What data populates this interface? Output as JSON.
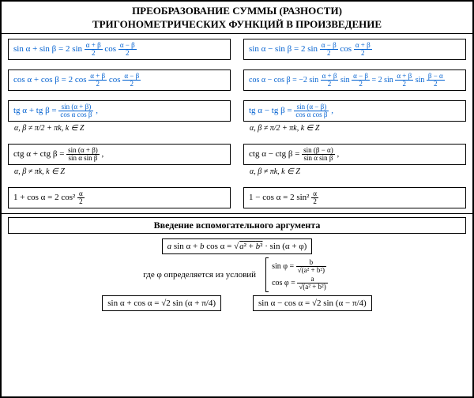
{
  "colors": {
    "accent": "#0060d0",
    "text": "#000000",
    "border": "#000000",
    "bg": "#ffffff"
  },
  "title_line1": "ПРЕОБРАЗОВАНИЕ СУММЫ (РАЗНОСТИ)",
  "title_line2": "ТРИГОНОМЕТРИЧЕСКИХ ФУНКЦИЙ В ПРОИЗВЕДЕНИЕ",
  "formulas": {
    "sin_plus": "sin α + sin β = 2 sin",
    "sin_minus": "sin α − sin β = 2 sin",
    "cos_plus": "cos α + cos β = 2 cos",
    "cos_minus": "cos α − cos β = −2 sin",
    "cos_minus_alt": " = 2 sin",
    "tg_plus": "tg α + tg β =",
    "tg_minus": "tg α − tg β =",
    "ctg_plus": "ctg α + ctg β =",
    "ctg_minus": "ctg α − ctg β =",
    "one_plus_cos": "1 + cos α = 2 cos²",
    "one_minus_cos": "1 − cos α = 2 sin²",
    "frac_ab2_num": "α + β",
    "frac_ab2_den": "2",
    "frac_amb2_num": "α − β",
    "frac_bma2_num": "β − α",
    "frac_a2_num": "α",
    "tg_num_plus": "sin (α + β)",
    "tg_num_minus": "sin (α − β)",
    "ctg_num_minus": "sin (β − α)",
    "tg_den": "cos α cos β",
    "ctg_den": "sin α sin β",
    "cond_tg": "α, β ≠ π/2 + πk,  k ∈ Z",
    "cond_ctg": "α, β ≠ πk,  k ∈ Z",
    "cos_text": " cos",
    "sin_text": " sin"
  },
  "aux": {
    "heading": "Введение вспомогательного аргумента",
    "main": "a sin α + b cos α = √(a² + b²) · sin (α + φ)",
    "where": "где φ определяется из условий",
    "sin_phi": "sin φ =",
    "cos_phi": "cos φ =",
    "b": "b",
    "a": "a",
    "root": "√(a² + b²)",
    "left": "sin α + cos α = √2 sin (α + π/4)",
    "right": "sin α − cos α = √2 sin (α − π/4)"
  }
}
